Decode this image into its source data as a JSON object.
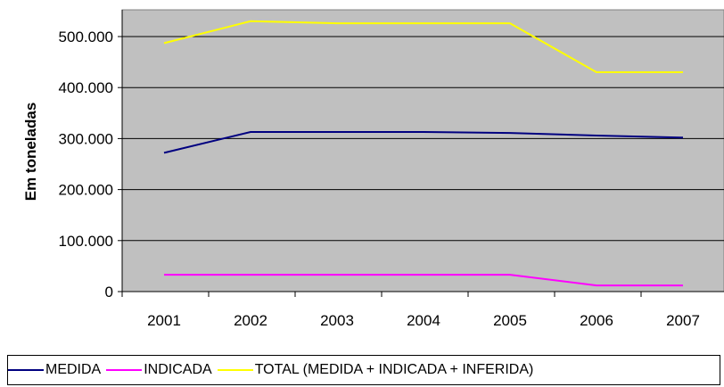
{
  "chart_data": {
    "type": "line",
    "ylabel": "Em toneladas",
    "xlabel": "",
    "categories": [
      "2001",
      "2002",
      "2003",
      "2004",
      "2005",
      "2006",
      "2007"
    ],
    "ylim": [
      0,
      500000
    ],
    "yticks": [
      {
        "value": 0,
        "label": "0"
      },
      {
        "value": 100000,
        "label": "100.000"
      },
      {
        "value": 200000,
        "label": "200.000"
      },
      {
        "value": 300000,
        "label": "300.000"
      },
      {
        "value": 400000,
        "label": "400.000"
      },
      {
        "value": 500000,
        "label": "500.000"
      }
    ],
    "grid": true,
    "legend_position": "bottom",
    "plot_background": "#c0c0c0",
    "series": [
      {
        "name": "MEDIDA",
        "color": "#000080",
        "values": [
          272000,
          313000,
          313000,
          313000,
          311000,
          306000,
          302000
        ]
      },
      {
        "name": "INDICADA",
        "color": "#ff00ff",
        "values": [
          33000,
          33000,
          33000,
          33000,
          33000,
          12000,
          12000
        ]
      },
      {
        "name": "TOTAL (MEDIDA + INDICADA + INFERIDA)",
        "color": "#ffff00",
        "values": [
          487000,
          530000,
          526000,
          526000,
          526000,
          430000,
          430000
        ]
      }
    ]
  }
}
